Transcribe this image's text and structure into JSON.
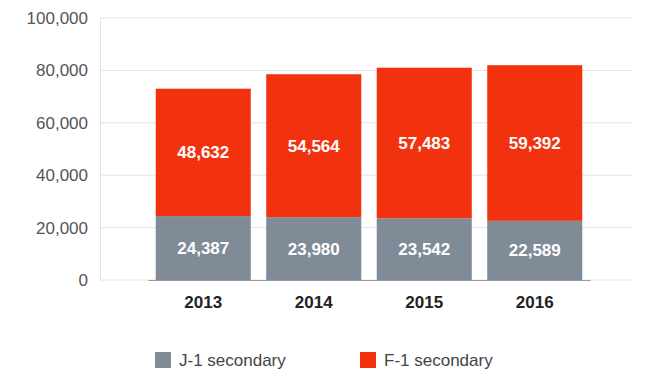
{
  "chart_data": {
    "type": "bar",
    "stacked": true,
    "data_labels": true,
    "grid": true,
    "legend": "bottom",
    "categories": [
      "2013",
      "2014",
      "2015",
      "2016"
    ],
    "series": [
      {
        "name": "J-1 secondary",
        "color": "#7f8b97",
        "values": [
          24387,
          23980,
          23542,
          22589
        ],
        "value_labels": [
          "24,387",
          "23,980",
          "23,542",
          "22,589"
        ]
      },
      {
        "name": "F-1 secondary",
        "color": "#f2320e",
        "values": [
          48632,
          54564,
          57483,
          59392
        ],
        "value_labels": [
          "48,632",
          "54,564",
          "57,483",
          "59,392"
        ]
      }
    ],
    "ylim": [
      0,
      100000
    ],
    "yticks": [
      0,
      {
        "value": 20000,
        "label": "20,000"
      },
      {
        "value": 40000,
        "label": "40,000"
      },
      {
        "value": 60000,
        "label": "60,000"
      },
      {
        "value": 80000,
        "label": "80,000"
      },
      {
        "value": 100000,
        "label": "100,000"
      }
    ]
  }
}
